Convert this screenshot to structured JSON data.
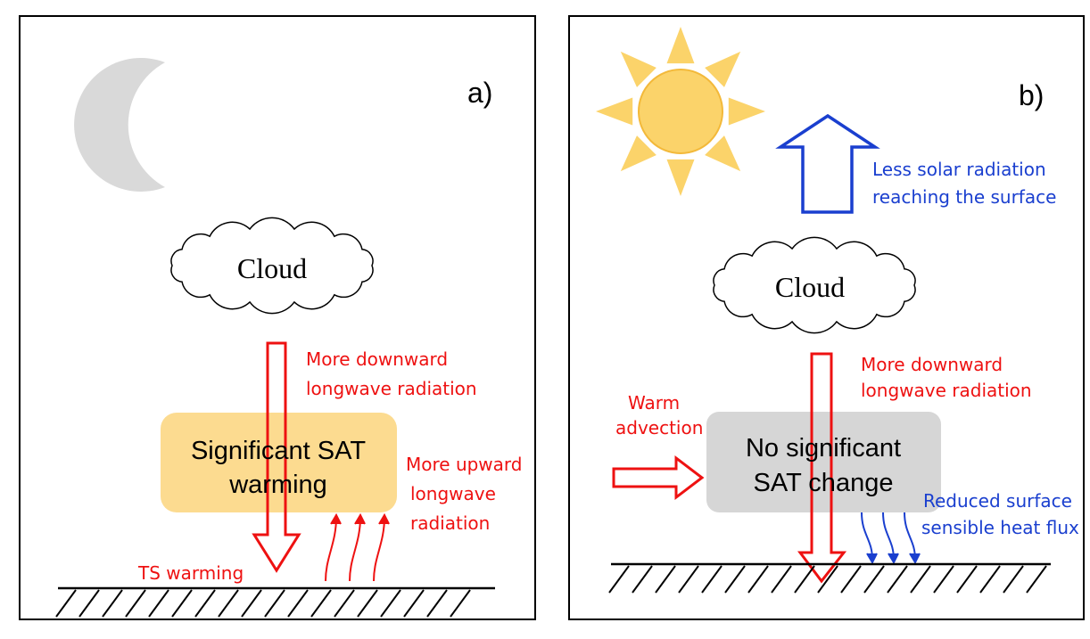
{
  "panels": [
    {
      "label": "a)",
      "cloud": "Cloud",
      "box": [
        "Significant SAT",
        "warming"
      ],
      "downward": [
        "More downward",
        "longwave radiation"
      ],
      "upward": [
        "More upward",
        "longwave",
        "radiation"
      ],
      "surface": "TS warming"
    },
    {
      "label": "b)",
      "cloud": "Cloud",
      "box": [
        "No significant",
        "SAT change"
      ],
      "downward": [
        "More downward",
        "longwave radiation"
      ],
      "solar": [
        "Less solar radiation",
        "reaching the surface"
      ],
      "advection": [
        "Warm",
        "advection"
      ],
      "flux": [
        "Reduced surface",
        "sensible heat flux"
      ]
    }
  ]
}
